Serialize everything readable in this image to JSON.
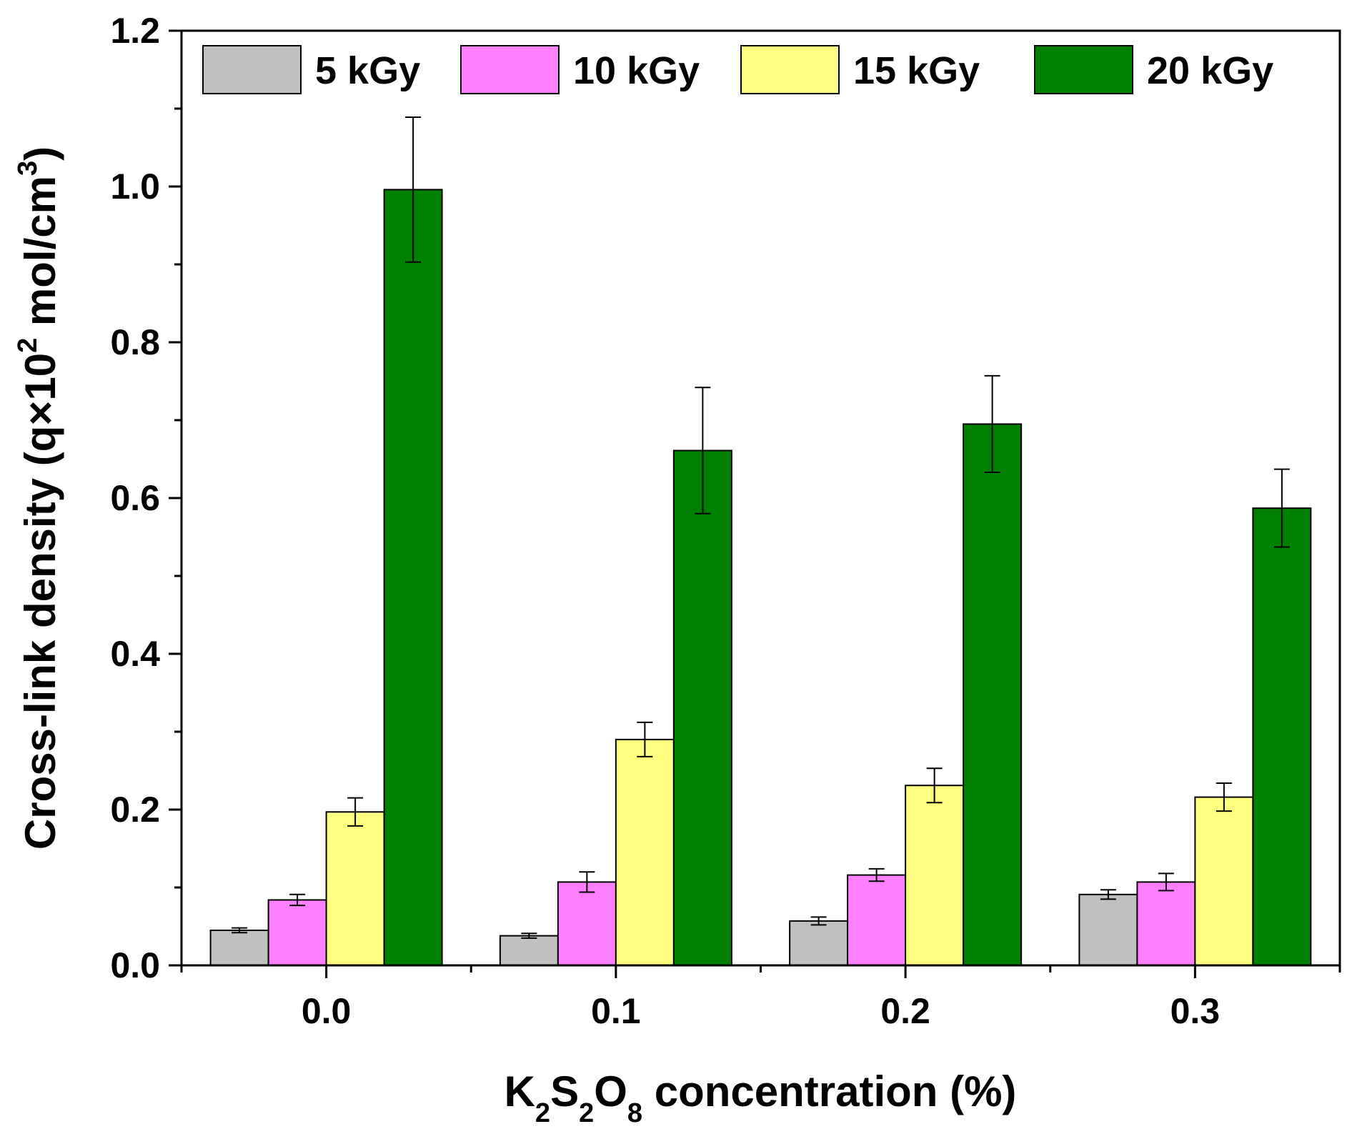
{
  "chart_data": {
    "type": "bar",
    "title": "",
    "xlabel": {
      "parts": [
        {
          "text": "K",
          "sub": false
        },
        {
          "text": "2",
          "sub": true
        },
        {
          "text": "S",
          "sub": false
        },
        {
          "text": "2",
          "sub": true
        },
        {
          "text": "O",
          "sub": false
        },
        {
          "text": "8",
          "sub": true
        },
        {
          "text": " concentration (%)",
          "sub": false
        }
      ]
    },
    "ylabel": {
      "parts": [
        {
          "text": "Cross-link density (q×10",
          "sup": false
        },
        {
          "text": "2",
          "sup": true
        },
        {
          "text": " mol/cm",
          "sup": false
        },
        {
          "text": "3",
          "sup": true
        },
        {
          "text": ")",
          "sup": false
        }
      ]
    },
    "categories": [
      "0.0",
      "0.1",
      "0.2",
      "0.3"
    ],
    "ylim": [
      0.0,
      1.2
    ],
    "yticks": [
      "0.0",
      "0.2",
      "0.4",
      "0.6",
      "0.8",
      "1.0",
      "1.2"
    ],
    "grid": false,
    "legend_position": "top",
    "series": [
      {
        "name": "5 kGy",
        "color": "#c0c0c0",
        "values": [
          0.045,
          0.038,
          0.057,
          0.091
        ],
        "errors": [
          0.003,
          0.003,
          0.005,
          0.006
        ]
      },
      {
        "name": "10 kGy",
        "color": "#ff80ff",
        "values": [
          0.084,
          0.107,
          0.116,
          0.107
        ],
        "errors": [
          0.007,
          0.013,
          0.008,
          0.011
        ]
      },
      {
        "name": "15 kGy",
        "color": "#ffff80",
        "values": [
          0.197,
          0.29,
          0.231,
          0.216
        ],
        "errors": [
          0.018,
          0.022,
          0.022,
          0.018
        ]
      },
      {
        "name": "20 kGy",
        "color": "#008000",
        "values": [
          0.996,
          0.661,
          0.695,
          0.587
        ],
        "errors": [
          0.093,
          0.081,
          0.062,
          0.05
        ]
      }
    ]
  }
}
